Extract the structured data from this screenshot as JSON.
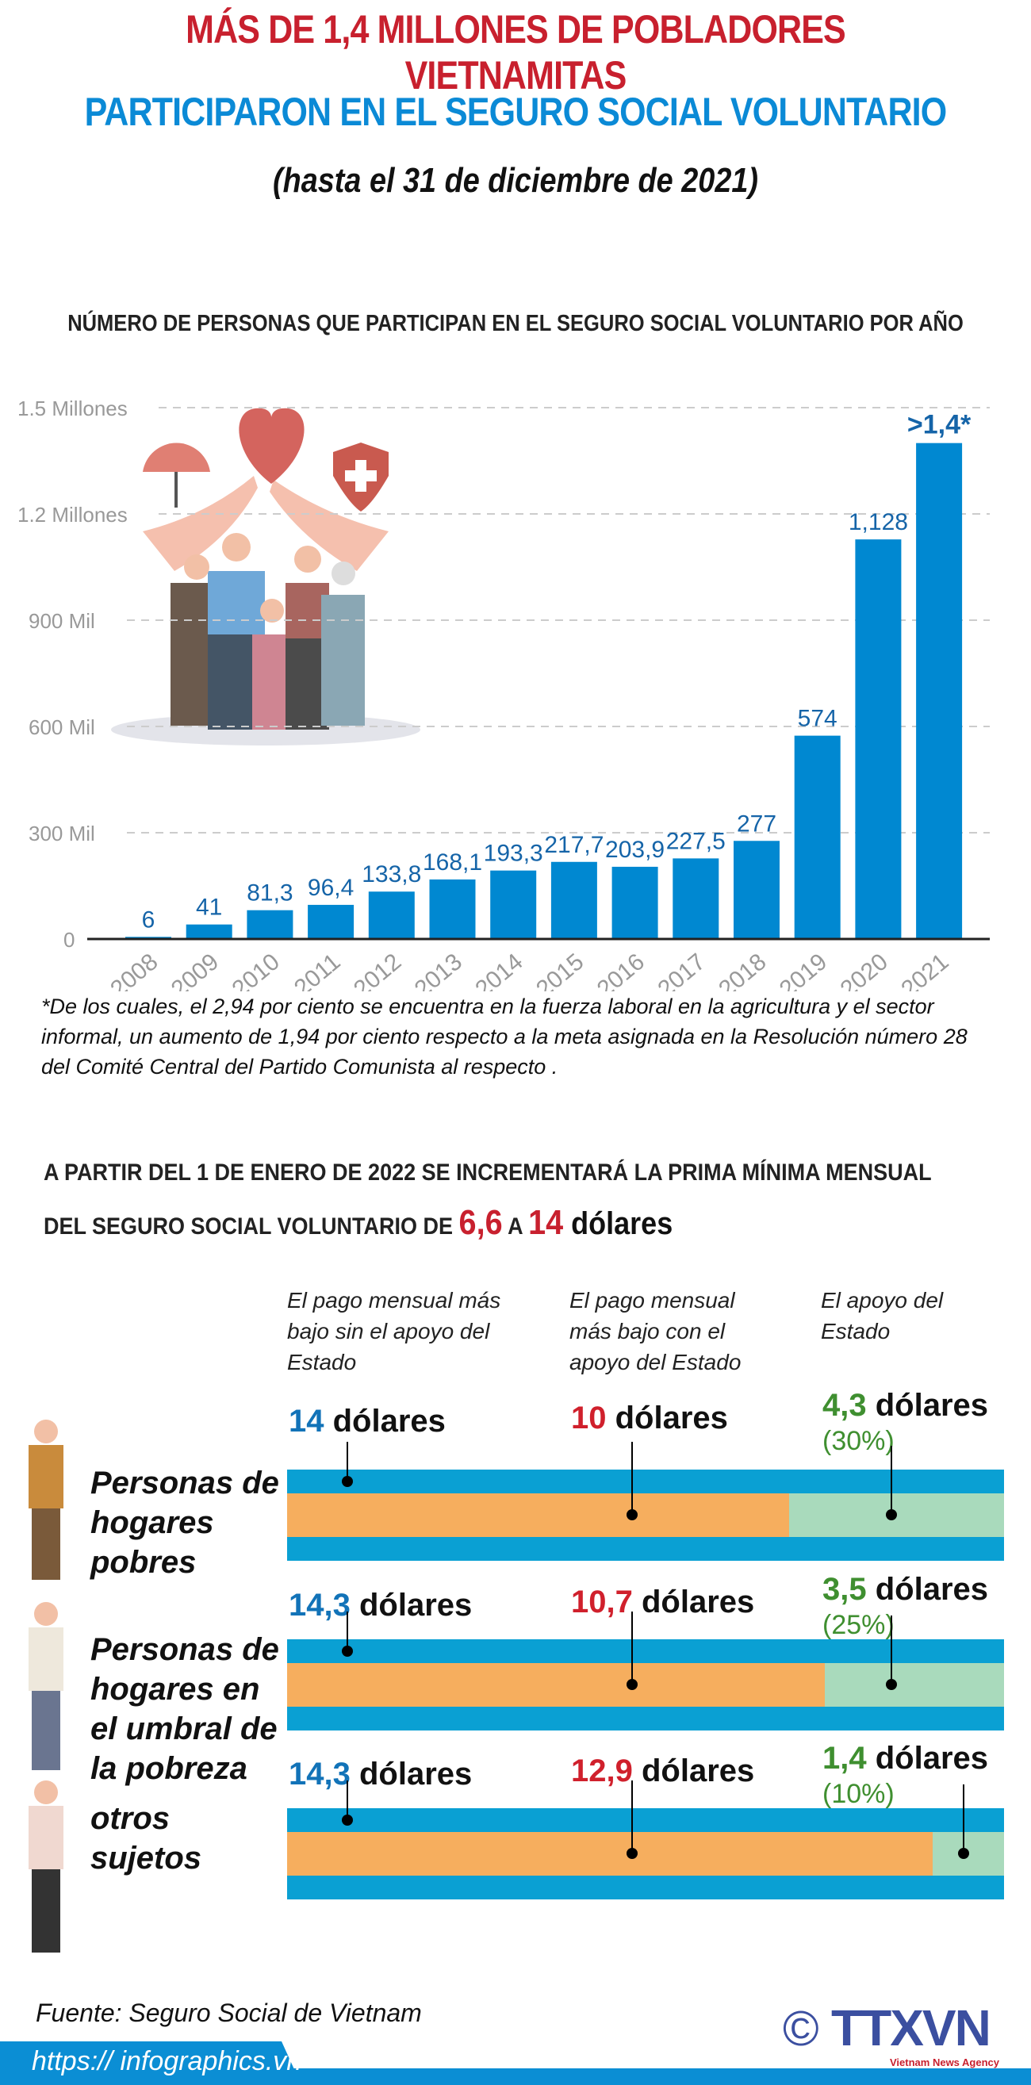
{
  "header": {
    "title_line1": "MÁS DE 1,4 MILLONES DE POBLADORES VIETNAMITAS",
    "title_line2": "PARTICIPARON EN EL SEGURO SOCIAL VOLUNTARIO",
    "subtitle": "(hasta el 31 de diciembre de 2021)"
  },
  "chart_data": {
    "type": "bar",
    "title": "NÚMERO DE PERSONAS QUE PARTICIPAN EN EL SEGURO SOCIAL VOLUNTARIO POR AÑO",
    "categories": [
      "2008",
      "2009",
      "2010",
      "2011",
      "2012",
      "2013",
      "2014",
      "2015",
      "2016",
      "2017",
      "2018",
      "2019",
      "2020",
      "2021"
    ],
    "values": [
      6,
      41,
      81.3,
      96.4,
      133.8,
      168.1,
      193.3,
      217.7,
      203.9,
      227.5,
      277,
      574,
      1128,
      1400
    ],
    "data_labels": [
      "6",
      "41",
      "81,3",
      "96,4",
      "133,8",
      "168,1",
      "193,3",
      "217,7",
      "203,9",
      "227,5",
      "277",
      "574",
      "1,128",
      ">1,4*"
    ],
    "y_ticks": [
      {
        "value": 0,
        "label": "0"
      },
      {
        "value": 300,
        "label": "300 Mil"
      },
      {
        "value": 600,
        "label": "600 Mil"
      },
      {
        "value": 900,
        "label": "900 Mil"
      },
      {
        "value": 1200,
        "label": "1.2 Millones"
      },
      {
        "value": 1500,
        "label": "1.5 Millones"
      }
    ],
    "ylim": [
      0,
      1500
    ],
    "grid": true,
    "bar_color": "#0088d1",
    "label_color": "#1564a8"
  },
  "footnote": "*De los cuales, el 2,94 por ciento se encuentra en la fuerza laboral en la agricultura y el sector informal, un aumento de 1,94 por ciento respecto a la meta asignada en la Resolución número 28 del Comité Central del Partido Comunista al respecto .",
  "section2": {
    "line1": "A PARTIR DEL 1 DE ENERO DE 2022 SE INCREMENTARÁ LA PRIMA MÍNIMA MENSUAL",
    "line2_prefix": "DEL SEGURO SOCIAL VOLUNTARIO DE ",
    "from": "6,6",
    "mid": " A ",
    "to": "14",
    "unit": " dólares"
  },
  "columns": [
    "El pago mensual más bajo sin el apoyo del Estado",
    "El pago mensual más bajo con el apoyo del Estado",
    "El apoyo del Estado"
  ],
  "unit": "dólares",
  "rows": [
    {
      "label": "Personas de hogares pobres",
      "without": "14",
      "with": "10",
      "support": "4,3",
      "pct": "(30%)",
      "support_fraction": 0.3
    },
    {
      "label": "Personas de hogares en el umbral de la pobreza",
      "without": "14,3",
      "with": "10,7",
      "support": "3,5",
      "pct": "(25%)",
      "support_fraction": 0.25
    },
    {
      "label": "otros sujetos",
      "without": "14,3",
      "with": "12,9",
      "support": "1,4",
      "pct": "(10%)",
      "support_fraction": 0.1
    }
  ],
  "footer": {
    "source": "Fuente: Seguro Social de Vietnam",
    "url": "https:// infographics.vn",
    "copyright": "©",
    "logo": "TTXVN",
    "logo_sub": "Vietnam News Agency"
  },
  "colors": {
    "red": "#c8202e",
    "blue": "#0b8ad6",
    "orange": "#f6ae5e",
    "green": "#a9dabc",
    "band": "#0aa0d3"
  }
}
